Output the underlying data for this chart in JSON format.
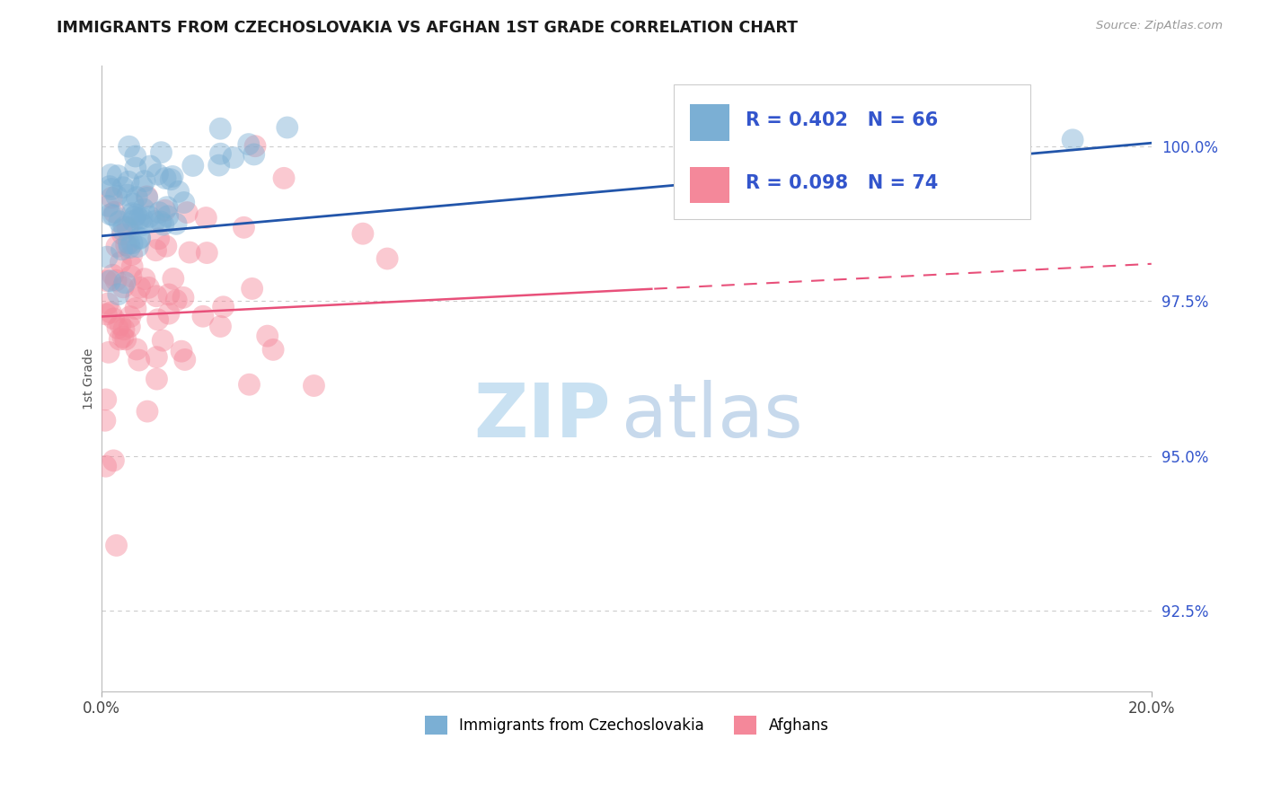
{
  "title": "IMMIGRANTS FROM CZECHOSLOVAKIA VS AFGHAN 1ST GRADE CORRELATION CHART",
  "source": "Source: ZipAtlas.com",
  "ylabel": "1st Grade",
  "yticks": [
    92.5,
    95.0,
    97.5,
    100.0
  ],
  "ytick_labels": [
    "92.5%",
    "95.0%",
    "97.5%",
    "100.0%"
  ],
  "xmin": 0.0,
  "xmax": 20.0,
  "ymin": 91.2,
  "ymax": 101.3,
  "blue_label": "Immigrants from Czechoslovakia",
  "pink_label": "Afghans",
  "blue_color": "#7BAFD4",
  "pink_color": "#F4889A",
  "blue_R": 0.402,
  "blue_N": 66,
  "pink_R": 0.098,
  "pink_N": 74,
  "legend_text_color": "#3355CC",
  "watermark_zip": "ZIP",
  "watermark_atlas": "atlas",
  "watermark_color_zip": "#C8DFF0",
  "watermark_color_atlas": "#AACCE0",
  "blue_line_x0": 0.0,
  "blue_line_y0": 98.55,
  "blue_line_x1": 20.0,
  "blue_line_y1": 100.05,
  "pink_line_x0": 0.0,
  "pink_line_y0": 97.25,
  "pink_line_x1": 20.0,
  "pink_line_y1": 98.1,
  "pink_solid_end_x": 10.5
}
